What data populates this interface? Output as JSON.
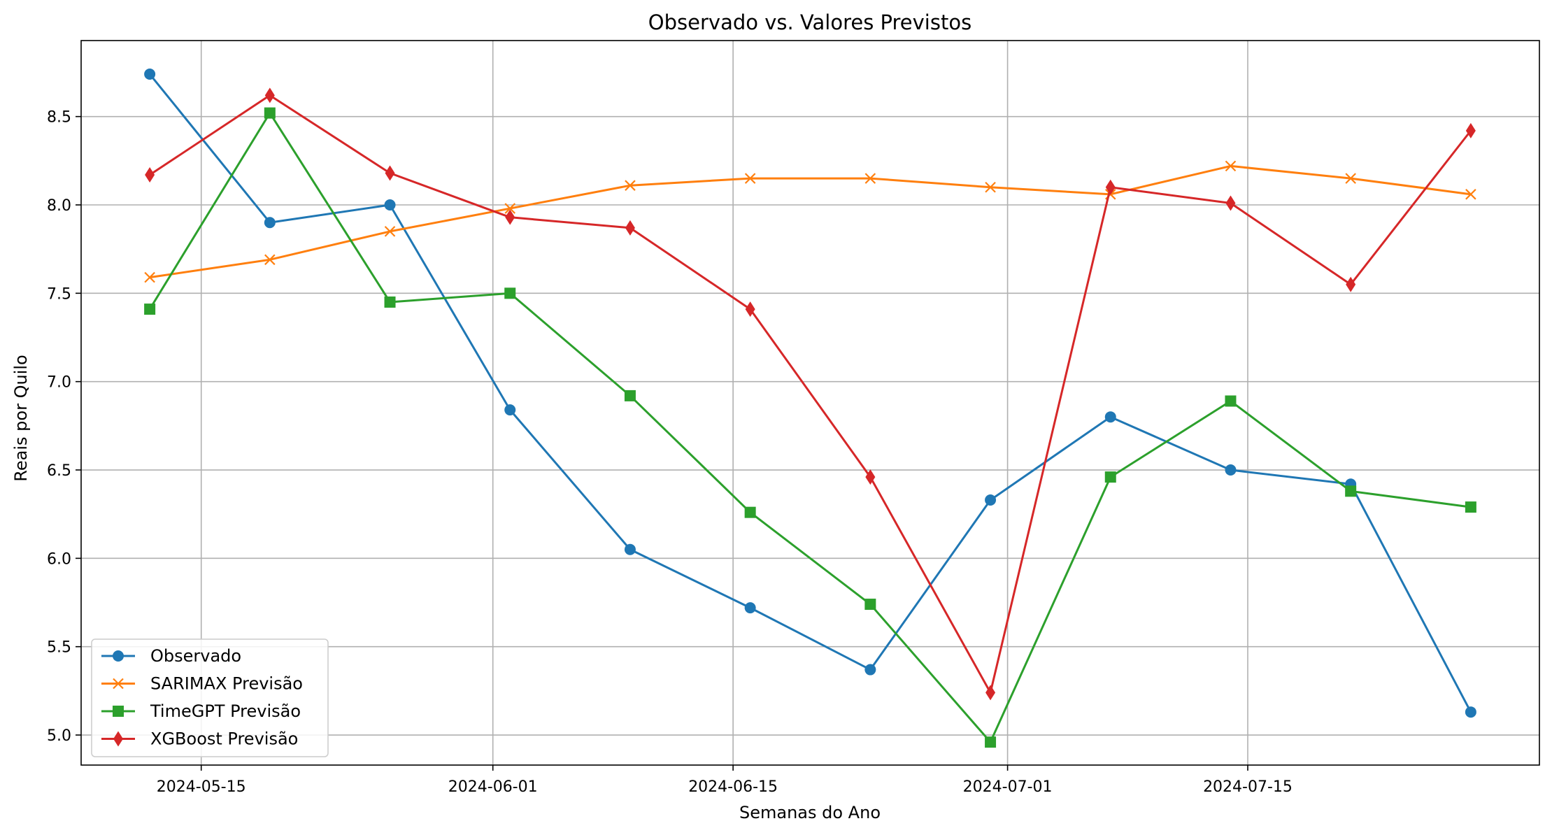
{
  "chart_data": {
    "type": "line",
    "title": "Observado vs. Valores Previstos",
    "xlabel": "Semanas do Ano",
    "ylabel": "Reais por Quilo",
    "x": [
      "2024-05-12",
      "2024-05-19",
      "2024-05-26",
      "2024-06-02",
      "2024-06-09",
      "2024-06-16",
      "2024-06-23",
      "2024-06-30",
      "2024-07-07",
      "2024-07-14",
      "2024-07-21",
      "2024-07-28"
    ],
    "x_ticks": [
      "2024-05-15",
      "2024-06-01",
      "2024-06-15",
      "2024-07-01",
      "2024-07-15"
    ],
    "y_ticks": [
      "5.0",
      "5.5",
      "6.0",
      "6.5",
      "7.0",
      "7.5",
      "8.0",
      "8.5"
    ],
    "xlim": [
      "2024-05-08",
      "2024-08-01"
    ],
    "ylim": [
      4.83,
      8.93
    ],
    "grid": true,
    "legend_position": "lower-left",
    "series": [
      {
        "name": "Observado",
        "color": "#1f77b4",
        "marker": "circle",
        "values": [
          8.74,
          7.9,
          8.0,
          6.84,
          6.05,
          5.72,
          5.37,
          6.33,
          6.8,
          6.5,
          6.42,
          5.13
        ]
      },
      {
        "name": "SARIMAX Previsão",
        "color": "#ff7f0e",
        "marker": "x",
        "values": [
          7.59,
          7.69,
          7.85,
          7.98,
          8.11,
          8.15,
          8.15,
          8.1,
          8.06,
          8.22,
          8.15,
          8.06
        ]
      },
      {
        "name": "TimeGPT Previsão",
        "color": "#2ca02c",
        "marker": "square",
        "values": [
          7.41,
          8.52,
          7.45,
          7.5,
          6.92,
          6.26,
          5.74,
          4.96,
          6.46,
          6.89,
          6.38,
          6.29
        ]
      },
      {
        "name": "XGBoost Previsão",
        "color": "#d62728",
        "marker": "diamond",
        "values": [
          8.17,
          8.62,
          8.18,
          7.93,
          7.87,
          7.41,
          6.46,
          5.24,
          8.1,
          8.01,
          7.55,
          8.42
        ]
      }
    ]
  }
}
